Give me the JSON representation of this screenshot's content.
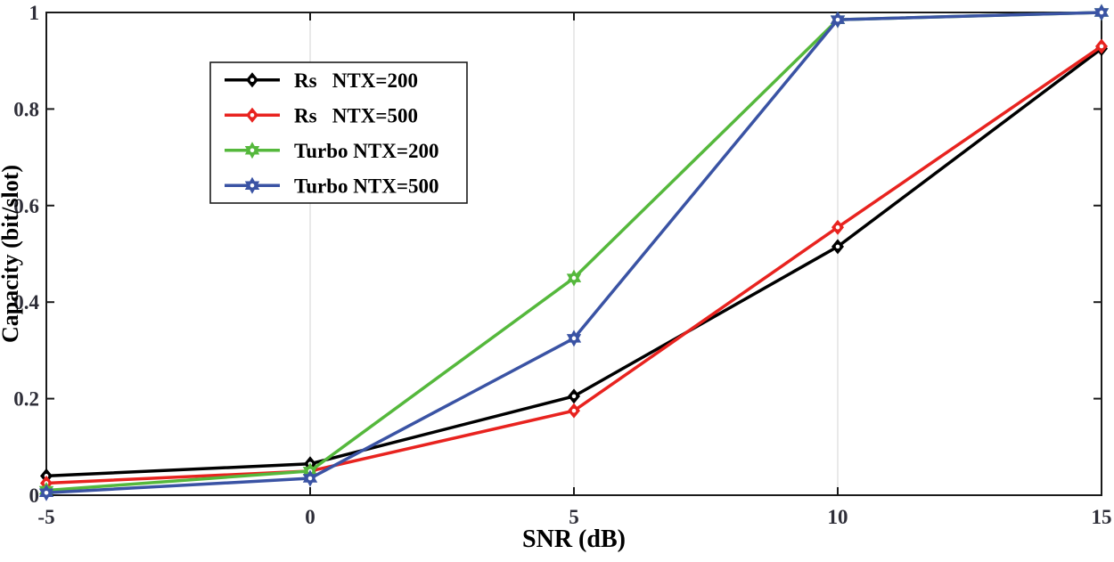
{
  "figure": {
    "background": "#ffffff"
  },
  "chart_data": {
    "type": "line",
    "title": "",
    "xlabel": "SNR (dB)",
    "ylabel": "Capacity (bit/slot)",
    "x": [
      -5,
      0,
      5,
      10,
      15
    ],
    "xlim": [
      -5,
      15
    ],
    "ylim": [
      0,
      1
    ],
    "xticks": [
      -5,
      0,
      5,
      10,
      15
    ],
    "yticks": [
      0,
      0.2,
      0.4,
      0.6,
      0.8,
      1
    ],
    "grid": {
      "vertical_at": [
        0,
        5,
        10
      ],
      "color": "#dadada"
    },
    "axis_color": "#1a1a1a",
    "tick_label_color": "#2e2e38",
    "legend": {
      "position": "upper-left",
      "border_color": "#1a1a1a",
      "background": "#ffffff"
    },
    "series": [
      {
        "name": "Rs   NTX=200",
        "color": "#000000",
        "marker": "diamond",
        "values": [
          0.04,
          0.065,
          0.205,
          0.515,
          0.925
        ]
      },
      {
        "name": "Rs   NTX=500",
        "color": "#e8231f",
        "marker": "diamond",
        "values": [
          0.025,
          0.05,
          0.175,
          0.555,
          0.93
        ]
      },
      {
        "name": "Turbo NTX=200",
        "color": "#55b83c",
        "marker": "hexagram",
        "values": [
          0.01,
          0.05,
          0.45,
          0.985,
          1.0
        ]
      },
      {
        "name": "Turbo NTX=500",
        "color": "#3a53a4",
        "marker": "hexagram",
        "values": [
          0.005,
          0.035,
          0.325,
          0.985,
          1.0
        ]
      }
    ]
  }
}
